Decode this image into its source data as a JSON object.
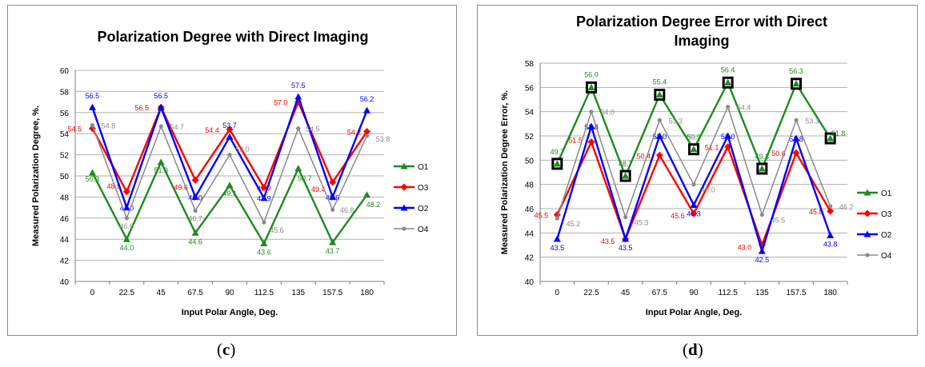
{
  "colors": {
    "O1": "#1e8b1e",
    "O3": "#ff0000",
    "O2": "#0000ff",
    "O4": "#8a8a8a"
  },
  "chart_data": [
    {
      "type": "line",
      "title": "Polarization Degree with Direct Imaging",
      "xlabel": "Input Polar Angle, Deg.",
      "ylabel": "Measured Polarization Degree, %.",
      "categories": [
        "0",
        "22.5",
        "45",
        "67.5",
        "90",
        "112.5",
        "135",
        "157.5",
        "180"
      ],
      "ylim": [
        40,
        60
      ],
      "yticks": [
        "40",
        "42",
        "44",
        "46",
        "48",
        "50",
        "52",
        "54",
        "56",
        "58",
        "60"
      ],
      "grid": true,
      "legend": "right",
      "series": [
        {
          "name": "O1",
          "marker": "triangle",
          "values": [
            50.3,
            44.0,
            51.3,
            44.6,
            49.1,
            43.6,
            50.7,
            43.7,
            48.2
          ],
          "labels": [
            "50.3",
            "44.0",
            "51.3",
            "44.6",
            "49.1",
            "43.6",
            "50.7",
            "43.7",
            "48.2"
          ]
        },
        {
          "name": "O3",
          "marker": "diamond",
          "values": [
            54.5,
            48.5,
            56.5,
            49.6,
            54.4,
            48.9,
            57.0,
            49.4,
            54.2
          ],
          "labels": [
            "54.5",
            "48.5",
            "56.5",
            "49.6",
            "54.4",
            "48.9",
            "57.0",
            "49.4",
            "54.2"
          ]
        },
        {
          "name": "O2",
          "marker": "triangle",
          "values": [
            56.5,
            47.0,
            56.5,
            48.0,
            53.7,
            47.9,
            57.5,
            48.0,
            56.2
          ],
          "labels": [
            "56.5",
            "47.0",
            "56.5",
            "48.0",
            "53.7",
            "47.9",
            "57.5",
            "48.0",
            "56.2"
          ]
        },
        {
          "name": "O4",
          "marker": "circle",
          "values": [
            54.8,
            46.0,
            54.7,
            46.7,
            52.0,
            45.6,
            54.5,
            46.8,
            53.8
          ],
          "labels": [
            "54.8",
            "46.0",
            "54.7",
            "46.7",
            "52.0",
            "45.6",
            "54.5",
            "46.8",
            "53.8"
          ]
        }
      ]
    },
    {
      "type": "line",
      "title": "Polarization Degree Error with Direct Imaging",
      "xlabel": "Input Polar Angle, Deg.",
      "ylabel": "Measured Polarization Degree Error, %.",
      "categories": [
        "0",
        "22.5",
        "45",
        "67.5",
        "90",
        "112.5",
        "135",
        "157.5",
        "180"
      ],
      "ylim": [
        40,
        58
      ],
      "yticks": [
        "40",
        "42",
        "44",
        "46",
        "48",
        "50",
        "52",
        "54",
        "56",
        "58"
      ],
      "grid": true,
      "legend": "right",
      "series": [
        {
          "name": "O1",
          "marker": "triangle",
          "values": [
            49.7,
            56.0,
            48.7,
            55.4,
            50.9,
            56.4,
            49.3,
            56.3,
            51.8
          ],
          "labels": [
            "49.7",
            "56.0",
            "48.7",
            "55.4",
            "50.9",
            "56.4",
            "49.3",
            "56.3",
            "51.8"
          ]
        },
        {
          "name": "O3",
          "marker": "diamond",
          "values": [
            45.5,
            51.5,
            43.5,
            50.4,
            45.6,
            51.1,
            43.0,
            50.6,
            45.8
          ],
          "labels": [
            "45.5",
            "51.5",
            "43.5",
            "50.4",
            "45.6",
            "51.1",
            "43.0",
            "50.6",
            "45.8"
          ]
        },
        {
          "name": "O2",
          "marker": "triangle",
          "values": [
            43.5,
            52.8,
            43.5,
            52.0,
            46.3,
            52.0,
            42.5,
            51.8,
            43.8
          ],
          "labels": [
            "43.5",
            "52.8",
            "43.5",
            "52.0",
            "46.3",
            "52.0",
            "42.5",
            "51.8",
            "43.8"
          ]
        },
        {
          "name": "O4",
          "marker": "circle",
          "values": [
            45.2,
            54.0,
            45.3,
            53.3,
            48.0,
            54.4,
            45.5,
            53.3,
            46.2
          ],
          "labels": [
            "45.2",
            "54.0",
            "45.3",
            "53.3",
            "48.0",
            "54.4",
            "45.5",
            "53.3",
            "46.2"
          ]
        }
      ]
    }
  ],
  "captions": {
    "c": "c",
    "d": "d"
  }
}
